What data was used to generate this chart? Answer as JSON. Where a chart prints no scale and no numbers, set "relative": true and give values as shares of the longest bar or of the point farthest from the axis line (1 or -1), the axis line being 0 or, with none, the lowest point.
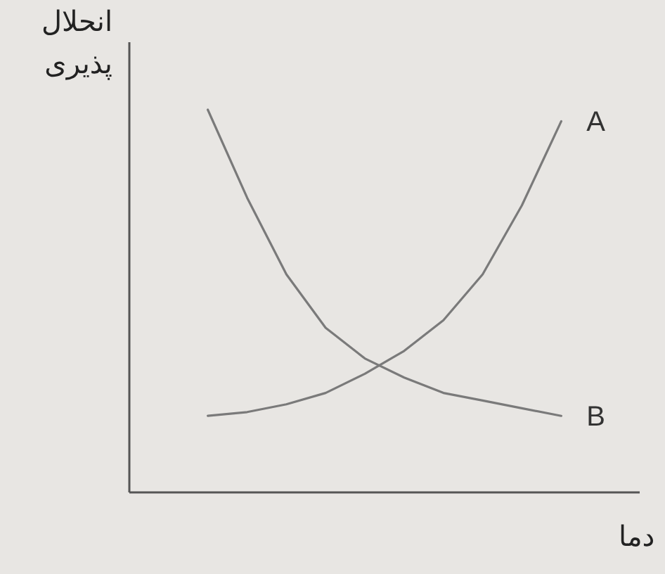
{
  "chart_data": {
    "type": "line",
    "relative": true,
    "xlabel": "دما",
    "ylabel": "انحلال پذیری",
    "categories": [
      null,
      null,
      null,
      null,
      null,
      null,
      null,
      null,
      null,
      null,
      null,
      null,
      null,
      null
    ],
    "series": [
      {
        "name": "A",
        "color": "#7a7a7a",
        "values": [
          null,
          null,
          0.2,
          0.21,
          0.23,
          0.26,
          0.31,
          0.37,
          0.45,
          0.57,
          0.75,
          0.97,
          null,
          null
        ]
      },
      {
        "name": "B",
        "color": "#7a7a7a",
        "values": [
          null,
          null,
          1.0,
          0.77,
          0.57,
          0.43,
          0.35,
          0.3,
          0.26,
          0.24,
          0.22,
          0.2,
          null,
          null
        ]
      }
    ]
  }
}
